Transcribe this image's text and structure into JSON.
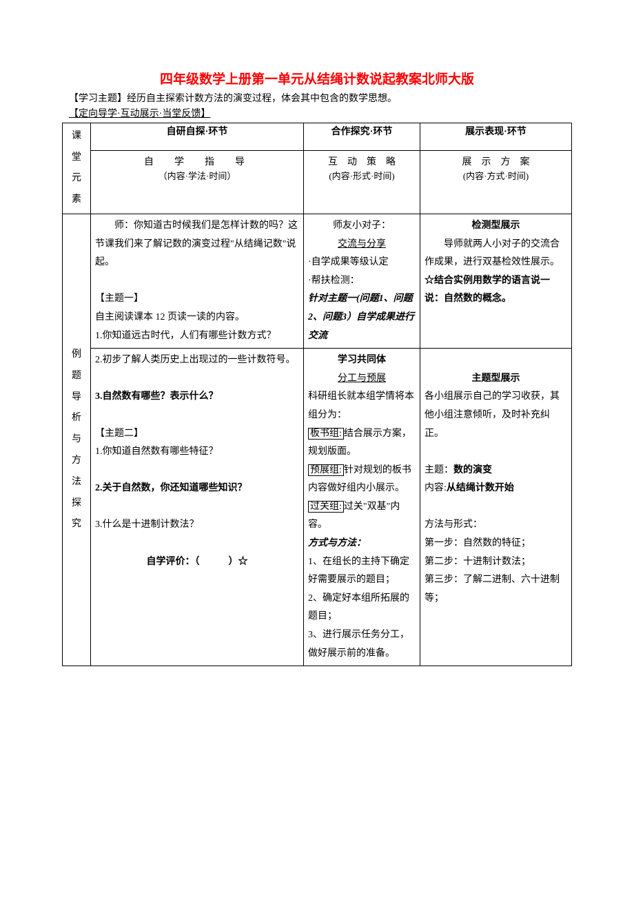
{
  "title": "四年级数学上册第一单元从结绳计数说起教案北师大版",
  "intro_label1": "【学习主题】",
  "intro_text1": "经历自主探索计数方法的演变过程，体会其中包含的数学思想。",
  "intro_label2": "【定向导学·互动展示·当堂反馈】",
  "row_label1": "课\n堂\n元\n素",
  "row_label2": "例\n题\n导\n析\n与\n方\n法\n探\n究",
  "hdr_col1": "自研自探·环节",
  "hdr_col2": "合作探究·环节",
  "hdr_col3": "展示表现·环节",
  "sub_col1_t": "自　学　指　导",
  "sub_col1_b": "（内容·学法·时间）",
  "sub_col2_t": "互　动　策　略",
  "sub_col2_b": "(内容·形式·时间)",
  "sub_col3_t": "展　示　方　案",
  "sub_col3_b": "(内容·方式·时间)",
  "c1_teacher": "师：你知道古时候我们是怎样计数的吗？这节课我们来了解记数的演变过程\"从结绳记数\"说起。",
  "c1_topic1": "【主题一】",
  "c1_t1_line1": "自主阅读课本 12 页读一读的内容。",
  "c1_t1_q1": "1.你知道远古时代，人们有哪些计数方式？",
  "c1_t1_q2": "2.初步了解人类历史上出现过的一些计数符号。",
  "c1_t1_q3": "3.自然数有哪些？表示什么？",
  "c1_topic2": "【主题二】",
  "c1_t2_q1": "1.你知道自然数有哪些特征？",
  "c1_t2_q2": "2.关于自然数，你还知道哪些知识？",
  "c1_t2_q3": "3.什么是十进制计数法？",
  "c1_eval": "自学评价：（　　　）☆",
  "c2_a_title": "师友小对子：",
  "c2_a_sub": "交流与分享",
  "c2_a_l1": "·自学成果等级认定",
  "c2_a_l2": "·帮扶检测：",
  "c2_a_l3": "针对主题一(问题1、问题2、问题3）自学成果进行交流",
  "c2_b_title": "学习共同体",
  "c2_b_sub": "分工与预展",
  "c2_b_intro": "科研组长就本组学情将本组分为：",
  "c2_b_g1a": "板书组:",
  "c2_b_g1b": "结合展示方案，规划版面。",
  "c2_b_g2a": "预展组:",
  "c2_b_g2b": "针对规划的板书内容做好组内小展示。",
  "c2_b_g3a": "过关组:",
  "c2_b_g3b": "过关\"双基\"内容。",
  "c2_b_method": "方式与方法：",
  "c2_b_m1": "1、在组长的主持下确定好需要展示的题目；",
  "c2_b_m2": "2、确定好本组所拓展的题目；",
  "c2_b_m3": "3、进行展示任务分工，做好展示前的准备。",
  "c3_a_title": "检测型展示",
  "c3_a_l1": "导师就两人小对子的交流合作成果，进行双基检效性展示。",
  "c3_a_l2": "☆结合实例用数学的语言说一说：自然数的概念。",
  "c3_b_title": "主题型展示",
  "c3_b_l1": "各小组展示自己的学习收获，其他小组注意倾听，及时补充纠正。",
  "c3_b_topic_a": "主题：",
  "c3_b_topic_b": "数的演变",
  "c3_b_content_a": "内容:",
  "c3_b_content_b": "从结绳计数开始",
  "c3_b_mf": "方法与形式：",
  "c3_b_s1": "第一步：自然数的特征；",
  "c3_b_s2": "第二步：十进制计数法；",
  "c3_b_s3": "第三步：了解二进制、六十进制等；"
}
